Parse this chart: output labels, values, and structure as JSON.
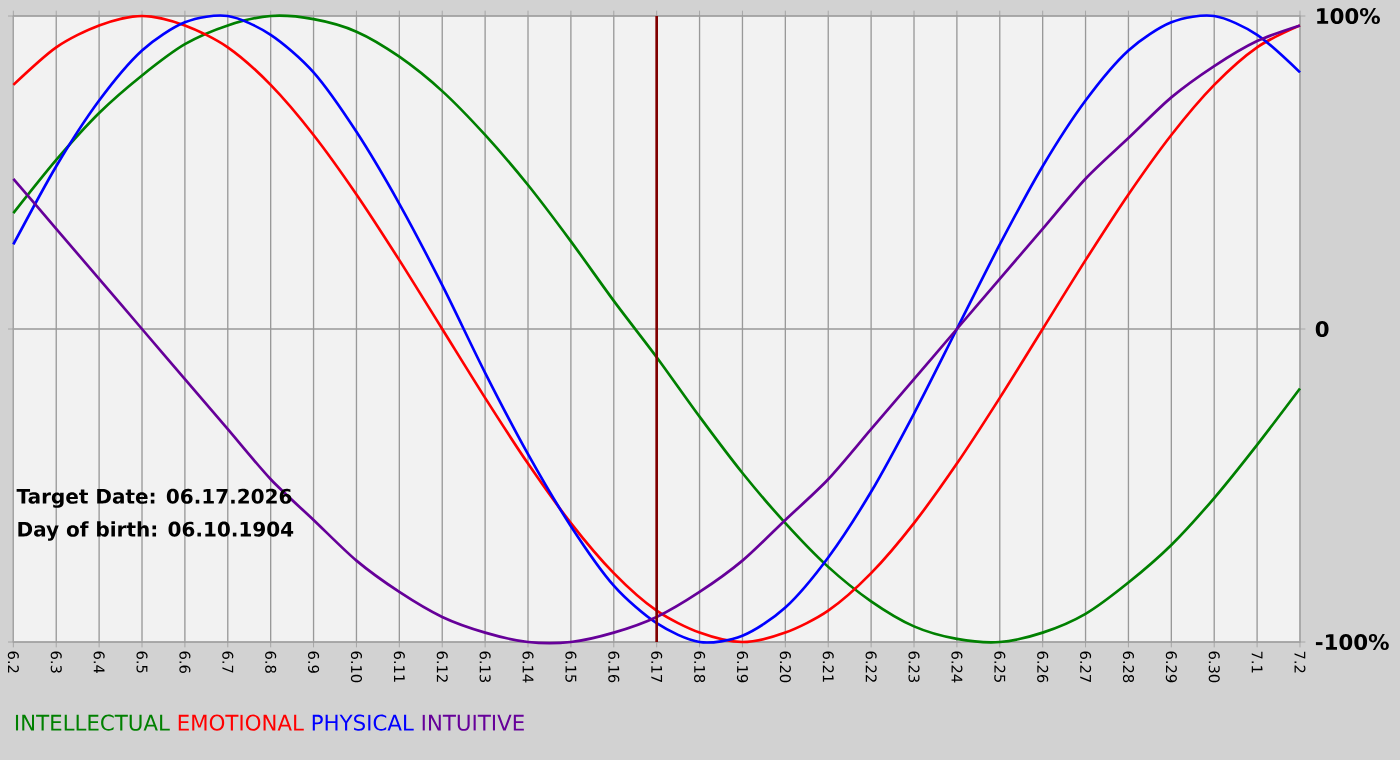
{
  "chart_data": {
    "type": "line",
    "categories": [
      "6.2",
      "6.3",
      "6.4",
      "6.5",
      "6.6",
      "6.7",
      "6.8",
      "6.9",
      "6.10",
      "6.11",
      "6.12",
      "6.13",
      "6.14",
      "6.15",
      "6.16",
      "6.17",
      "6.18",
      "6.19",
      "6.20",
      "6.21",
      "6.22",
      "6.23",
      "6.24",
      "6.25",
      "6.26",
      "6.27",
      "6.28",
      "6.29",
      "6.30",
      "7.1",
      "7.2"
    ],
    "series": [
      {
        "name": "INTELLECTUAL",
        "color": "#008000",
        "values": [
          37,
          54,
          69,
          81,
          91,
          97,
          100,
          99,
          95,
          87,
          76,
          62,
          46,
          28,
          9,
          -9,
          -28,
          -46,
          -62,
          -76,
          -87,
          -95,
          -99,
          -100,
          -97,
          -91,
          -81,
          -69,
          -54,
          -37,
          -19
        ]
      },
      {
        "name": "EMOTIONAL",
        "color": "#ff0000",
        "values": [
          78,
          90,
          97,
          100,
          97,
          90,
          78,
          62,
          43,
          22,
          0,
          -22,
          -43,
          -62,
          -78,
          -90,
          -97,
          -100,
          -97,
          -90,
          -78,
          -62,
          -43,
          -22,
          0,
          22,
          43,
          62,
          78,
          90,
          97
        ]
      },
      {
        "name": "PHYSICAL",
        "color": "#0000ff",
        "values": [
          27,
          52,
          73,
          89,
          98,
          100,
          94,
          82,
          63,
          40,
          14,
          -14,
          -40,
          -63,
          -82,
          -94,
          -100,
          -98,
          -89,
          -73,
          -52,
          -27,
          0,
          27,
          52,
          73,
          89,
          98,
          100,
          94,
          82
        ]
      },
      {
        "name": "INTUITIVE",
        "color": "#660099",
        "values": [
          48,
          32,
          16,
          0,
          -16,
          -32,
          -48,
          -61,
          -74,
          -84,
          -92,
          -97,
          -100,
          -100,
          -97,
          -92,
          -84,
          -74,
          -61,
          -48,
          -32,
          -16,
          0,
          16,
          32,
          48,
          61,
          74,
          84,
          92,
          97
        ]
      }
    ],
    "ylim": [
      -100,
      100
    ],
    "yticks": [
      {
        "value": 100,
        "label": "100%"
      },
      0,
      {
        "value": -100,
        "label": "-100%"
      }
    ],
    "grid": true,
    "legend": "bottom",
    "marker": "none",
    "line_style": "solid",
    "ref_lines": [
      {
        "axis": "x",
        "value": "6.17",
        "color": "#800000"
      }
    ],
    "annotations": [
      "Target Date: 06.17.2026",
      "Day of birth: 06.10.1904"
    ]
  }
}
